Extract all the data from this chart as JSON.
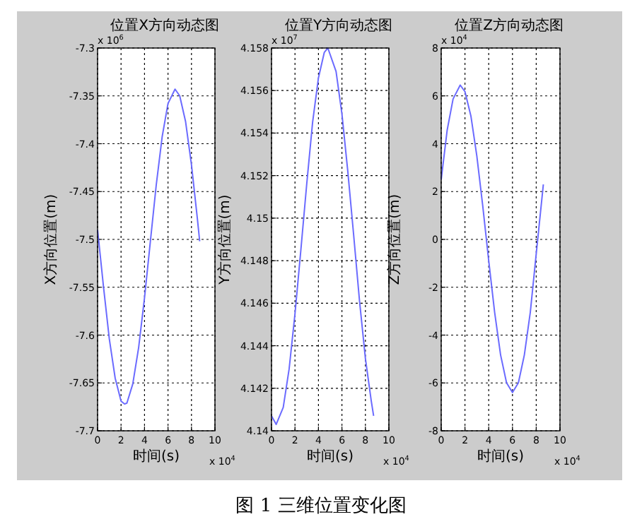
{
  "chart_data": [
    {
      "type": "line",
      "title": "位置X方向动态图",
      "xlabel": "时间(s)",
      "ylabel": "X方向位置(m)",
      "color": "#6b6bff",
      "grid": true,
      "x": [
        0,
        0.5,
        1,
        1.5,
        2,
        2.3,
        2.5,
        3,
        3.5,
        4,
        4.5,
        5,
        5.5,
        6,
        6.6,
        7,
        7.5,
        8,
        8.5,
        8.7
      ],
      "values": [
        -7.49,
        -7.549,
        -7.604,
        -7.645,
        -7.669,
        -7.672,
        -7.671,
        -7.651,
        -7.613,
        -7.561,
        -7.502,
        -7.443,
        -7.393,
        -7.358,
        -7.343,
        -7.35,
        -7.377,
        -7.422,
        -7.478,
        -7.502
      ],
      "xlim": [
        0,
        10
      ],
      "ylim": [
        -7.7,
        -7.3
      ],
      "xticks": [
        0,
        2,
        4,
        6,
        8,
        10
      ],
      "yticks": [
        -7.7,
        -7.65,
        -7.6,
        -7.55,
        -7.5,
        -7.45,
        -7.4,
        -7.35,
        -7.3
      ],
      "annotations": [
        "x 10$^{6}$",
        "x 10$^{4}$",
        "图 1  三维位置变化图"
      ]
    },
    {
      "type": "line",
      "title": "位置Y方向动态图",
      "xlabel": "时间(s)",
      "ylabel": "Y方向位置(m)",
      "color": "#6b6bff",
      "grid": true,
      "x": [
        0,
        0.4,
        1,
        1.5,
        2,
        2.5,
        3,
        3.5,
        4,
        4.5,
        4.8,
        5.5,
        6,
        6.5,
        7,
        7.5,
        8,
        8.5,
        8.7
      ],
      "values": [
        4.1407,
        4.1403,
        4.1411,
        4.1429,
        4.1455,
        4.1485,
        4.1516,
        4.1545,
        4.1566,
        4.1578,
        4.158,
        4.1569,
        4.1549,
        4.1522,
        4.1492,
        4.1461,
        4.1434,
        4.1414,
        4.1407
      ],
      "xlim": [
        0,
        10
      ],
      "ylim": [
        4.14,
        4.158
      ],
      "xticks": [
        0,
        2,
        4,
        6,
        8,
        10
      ],
      "yticks": [
        4.14,
        4.142,
        4.144,
        4.146,
        4.148,
        4.15,
        4.152,
        4.154,
        4.156,
        4.158
      ],
      "annotations": [
        "x 10$^{7}$",
        "x 10$^{4}$"
      ]
    },
    {
      "type": "line",
      "title": "位置Z方向动态图",
      "xlabel": "时间(s)",
      "ylabel": "Z方向位置(m)",
      "color": "#6b6bff",
      "grid": true,
      "x": [
        0,
        0.5,
        1,
        1.6,
        2,
        2.5,
        3,
        3.5,
        4,
        4.5,
        5,
        5.5,
        6,
        6.5,
        7,
        7.5,
        8,
        8.6
      ],
      "values": [
        2.5,
        4.56,
        5.87,
        6.45,
        6.18,
        5.16,
        3.49,
        1.39,
        -0.89,
        -3.05,
        -4.83,
        -5.99,
        -6.4,
        -5.99,
        -4.83,
        -3.05,
        -0.6,
        2.3
      ],
      "xlim": [
        0,
        10
      ],
      "ylim": [
        -8,
        8
      ],
      "xticks": [
        0,
        2,
        4,
        6,
        8,
        10
      ],
      "yticks": [
        -8,
        -6,
        -4,
        -2,
        0,
        2,
        4,
        6,
        8
      ],
      "annotations": [
        "x 10$^{4}$",
        "x 10$^{4}$"
      ]
    }
  ]
}
